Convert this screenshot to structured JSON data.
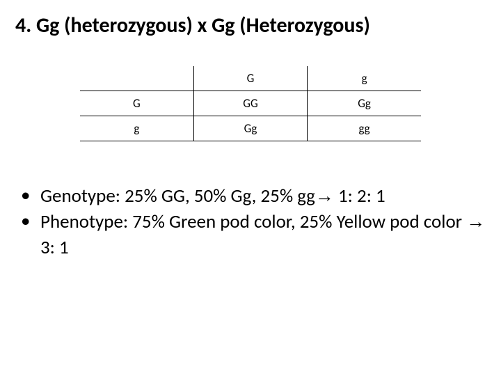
{
  "title": "4. Gg (heterozygous) x Gg (Heterozygous)",
  "punnett": {
    "top_alleles": [
      "G",
      "g"
    ],
    "left_alleles": [
      "G",
      "g"
    ],
    "cells": [
      [
        "GG",
        "Gg"
      ],
      [
        "Gg",
        "gg"
      ]
    ]
  },
  "bullets": {
    "genotype_label": "Genotype: 25% GG, 50% Gg, 25% gg",
    "genotype_ratio": " 1: 2: 1",
    "phenotype_label": "Phenotype: 75% Green pod color, 25% Yellow pod color ",
    "phenotype_ratio": " 3: 1"
  },
  "arrow_glyph": "→"
}
